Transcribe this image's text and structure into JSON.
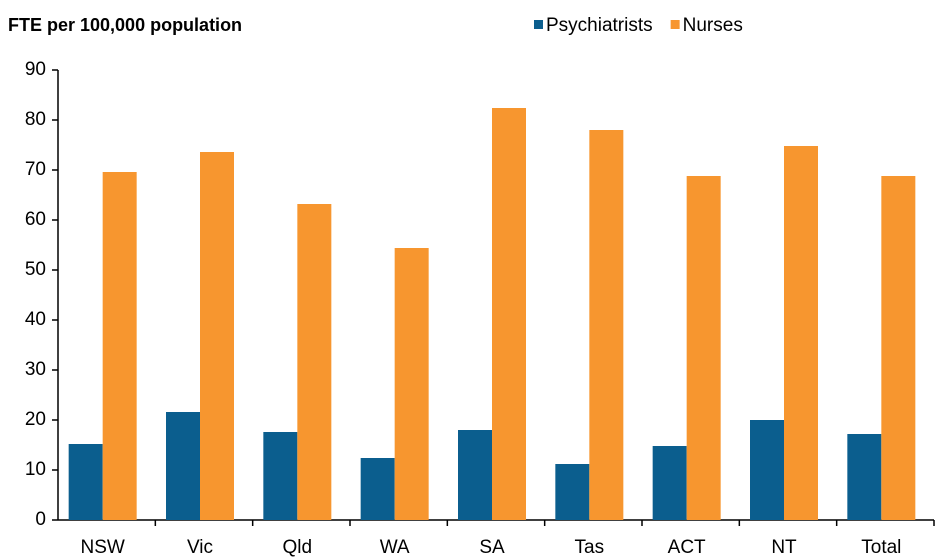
{
  "chart_data": {
    "type": "bar",
    "y_label": "FTE  per 100,000 population",
    "categories": [
      "NSW",
      "Vic",
      "Qld",
      "WA",
      "SA",
      "Tas",
      "ACT",
      "NT",
      "Total"
    ],
    "series": [
      {
        "name": "Psychiatrists",
        "color": "#0b5e8e",
        "values": [
          15.2,
          21.6,
          17.6,
          12.4,
          18,
          11.2,
          14.8,
          20,
          17.2
        ]
      },
      {
        "name": "Nurses",
        "color": "#f7962f",
        "values": [
          69.6,
          73.6,
          63.2,
          54.4,
          82.4,
          78,
          68.8,
          74.8,
          68.8
        ]
      }
    ],
    "ylim": [
      0,
      90
    ],
    "yticks": [
      0,
      10,
      20,
      30,
      40,
      50,
      60,
      70,
      80,
      90
    ],
    "grid": false
  }
}
